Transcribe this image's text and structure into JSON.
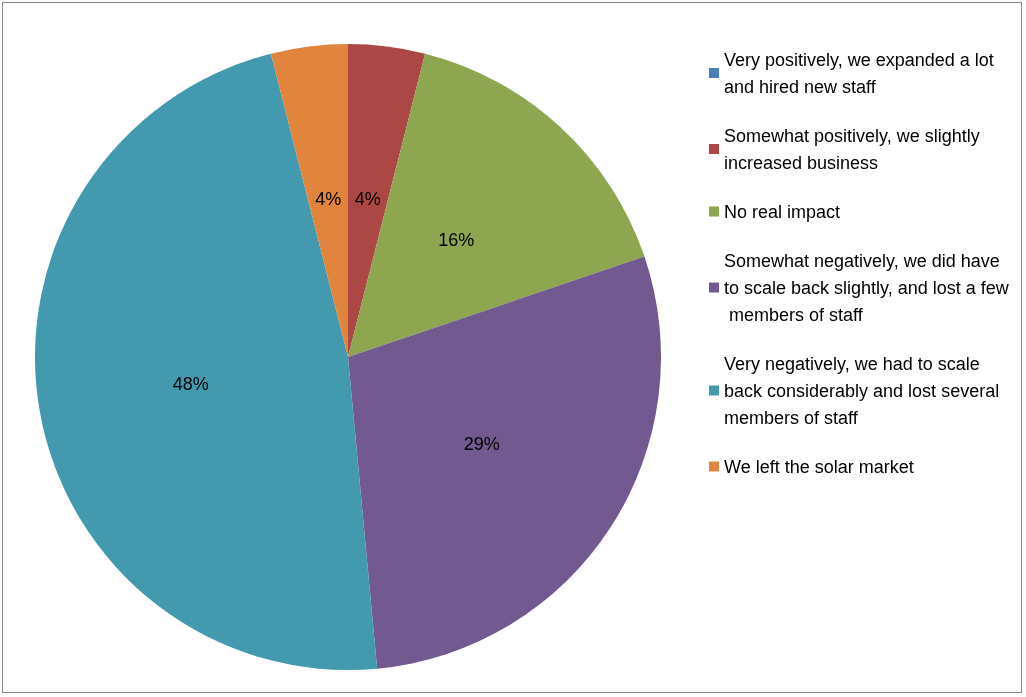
{
  "chart_data": {
    "type": "pie",
    "categories": [
      "Very positively, we expanded a lot and hired new staff",
      "Somewhat positively, we slightly increased business",
      "No real impact",
      "Somewhat negatively, we did have to scale back slightly, and lost a few members of staff",
      "Very negatively, we had to scale back considerably and lost several members of staff",
      "We left the solar market"
    ],
    "values": [
      0,
      4,
      16,
      29,
      48,
      4
    ],
    "colors": [
      "#4a7ebb",
      "#ab4744",
      "#8da64f",
      "#72598f",
      "#4399ae",
      "#e0843e"
    ],
    "value_labels": [
      null,
      "4%",
      "16%",
      "29%",
      "48%",
      "4%"
    ],
    "legend": "right"
  }
}
